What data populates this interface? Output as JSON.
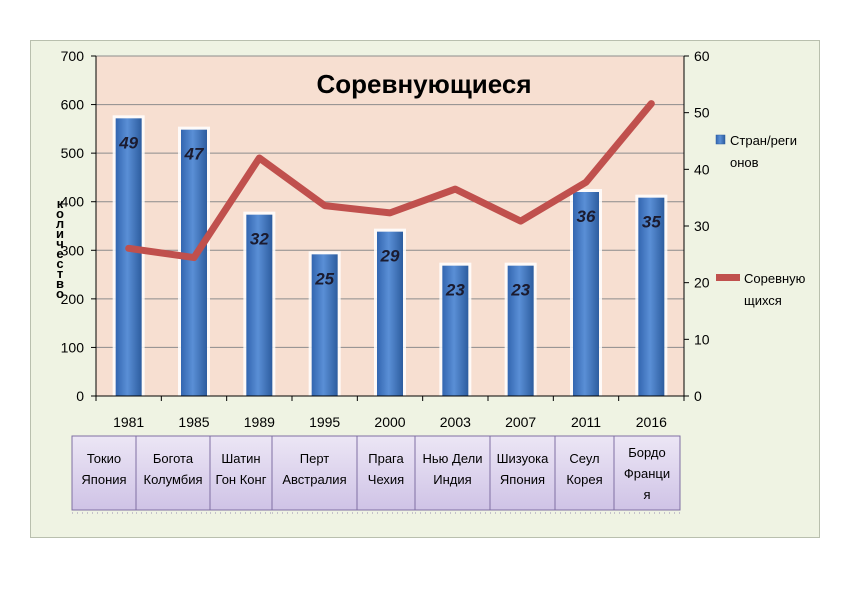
{
  "chart_data": {
    "type": "bar",
    "title": "Соревнующиеся",
    "ylabel": "количество",
    "categories": [
      "1981",
      "1985",
      "1989",
      "1995",
      "2000",
      "2003",
      "2007",
      "2011",
      "2016"
    ],
    "places": [
      [
        "Токио",
        "Япония"
      ],
      [
        "Богота",
        "Колумбия"
      ],
      [
        "Шатин",
        "Гон Конг"
      ],
      [
        "Перт",
        "Австралия"
      ],
      [
        "Прага",
        "Чехия"
      ],
      [
        "Нью Дели",
        "Индия"
      ],
      [
        "Шизуока",
        "Япония"
      ],
      [
        "Сеул",
        "Корея"
      ],
      [
        "Бордо",
        "Франци",
        "я"
      ]
    ],
    "series": [
      {
        "name": "Стран/регионов",
        "kind": "bar",
        "axis": "right",
        "values": [
          49,
          47,
          32,
          25,
          29,
          23,
          23,
          36,
          35
        ],
        "labels": [
          "49",
          "47",
          "32",
          "25",
          "29",
          "23",
          "23",
          "36",
          "35"
        ],
        "color": "#3f74c0"
      },
      {
        "name": "Соревнующихся",
        "kind": "line",
        "axis": "left",
        "values": [
          304,
          285,
          490,
          392,
          377,
          426,
          360,
          440,
          602
        ],
        "color": "#c0504d"
      }
    ],
    "legend": {
      "bar_lines": [
        "Стран/реги",
        "онов"
      ],
      "line_lines": [
        "Соревную",
        "щихся"
      ],
      "placement": "right"
    },
    "y_left": {
      "min": 0,
      "max": 700,
      "ticks": [
        "0",
        "100",
        "200",
        "300",
        "400",
        "500",
        "600",
        "700"
      ]
    },
    "y_right": {
      "min": 0,
      "max": 60,
      "ticks": [
        "0",
        "10",
        "20",
        "30",
        "40",
        "50",
        "60"
      ]
    },
    "grid": true,
    "colors": {
      "plot_bg": "#f7dfd1",
      "frame_bg": "#eff3e3",
      "bar": "#3f74c0",
      "line": "#c0504d",
      "cell": "#dcd3ec"
    }
  }
}
